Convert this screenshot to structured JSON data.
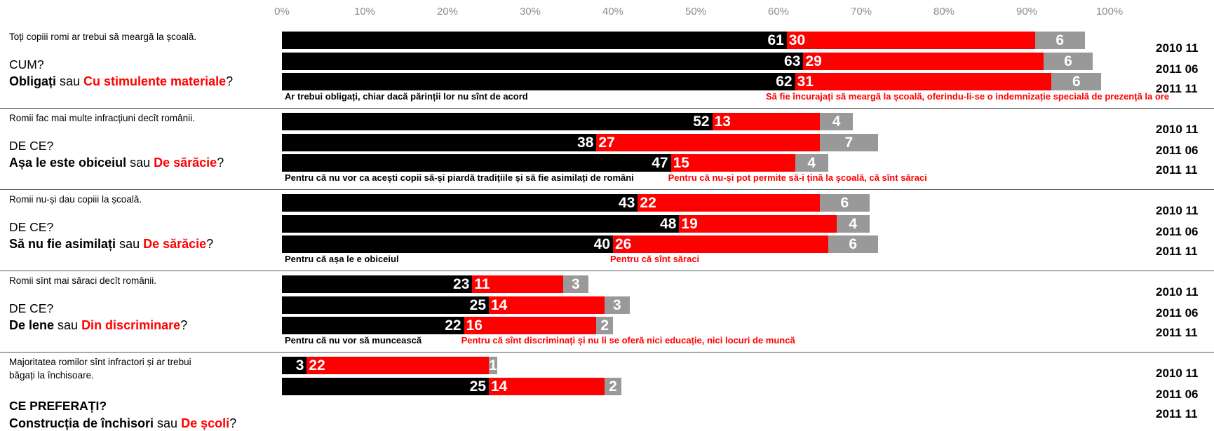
{
  "chart_data": {
    "type": "bar",
    "orientation": "horizontal",
    "stacked": true,
    "xlim": [
      0,
      100
    ],
    "tick_labels": [
      "0%",
      "10%",
      "20%",
      "30%",
      "40%",
      "50%",
      "60%",
      "70%",
      "80%",
      "90%",
      "100%"
    ],
    "series_colors": [
      "#000000",
      "#ff0000",
      "#999999"
    ],
    "panels": [
      {
        "statement": "Toți copiii romi ar trebui să meargă la școală.",
        "question_head": "CUM?",
        "option_a": "Obligați",
        "connector": "sau",
        "option_b": "Cu stimulente materiale",
        "end": "?",
        "note_a": "Ar trebui obligați, chiar dacă părinții lor nu sînt de acord",
        "note_b": "Să fie încurajați să meargă la școală, oferindu-li-se o indemnizație specială de prezență la ore",
        "rows": [
          {
            "year": "2010 11",
            "values": [
              61,
              30,
              6
            ]
          },
          {
            "year": "2011 06",
            "values": [
              63,
              29,
              6
            ]
          },
          {
            "year": "2011 11",
            "values": [
              62,
              31,
              6
            ]
          }
        ]
      },
      {
        "statement": "Romii fac mai multe infracțiuni decît românii.",
        "question_head": "DE CE?",
        "option_a": "Așa le este obiceiul",
        "connector": "sau",
        "option_b": "De sărăcie",
        "end": "?",
        "note_a": "Pentru că nu vor ca acești copii să-și piardă tradițiile și să fie asimilați de români",
        "note_b": "Pentru că nu-și pot permite să-i țină la școală, că sînt săraci",
        "rows": [
          {
            "year": "2010 11",
            "values": [
              52,
              13,
              4
            ]
          },
          {
            "year": "2011 06",
            "values": [
              38,
              27,
              7
            ]
          },
          {
            "year": "2011 11",
            "values": [
              47,
              15,
              4
            ]
          }
        ]
      },
      {
        "statement": "Romii nu-și dau copiii la școală.",
        "question_head": "DE CE?",
        "option_a": "Să nu fie asimilați",
        "connector": "sau",
        "option_b": "De sărăcie",
        "end": "?",
        "note_a": "Pentru că așa le e obiceiul",
        "note_b": "Pentru că sînt săraci",
        "rows": [
          {
            "year": "2010 11",
            "values": [
              43,
              22,
              6
            ]
          },
          {
            "year": "2011 06",
            "values": [
              48,
              19,
              4
            ]
          },
          {
            "year": "2011 11",
            "values": [
              40,
              26,
              6
            ]
          }
        ]
      },
      {
        "statement": "Romii sînt mai săraci decît românii.",
        "question_head": "DE CE?",
        "option_a": "De lene",
        "connector": "sau",
        "option_b": "Din discriminare",
        "end": "?",
        "note_a": "Pentru că nu vor să muncească",
        "note_b": "Pentru că sînt discriminați și nu li se oferă nici educație, nici locuri de muncă",
        "rows": [
          {
            "year": "2010 11",
            "values": [
              23,
              11,
              3
            ]
          },
          {
            "year": "2011 06",
            "values": [
              25,
              14,
              3
            ]
          },
          {
            "year": "2011 11",
            "values": [
              22,
              16,
              2
            ]
          }
        ]
      },
      {
        "statement": "Majoritatea romilor sînt infractori și ar trebui băgați la închisoare.",
        "question_head": "CE PREFERAȚI?",
        "option_a": "Construcția de închisori",
        "connector": "sau",
        "option_b": "De școli",
        "end": "?",
        "note_a": "",
        "note_b": "",
        "rows": [
          {
            "year": "2010 11",
            "values": [
              3,
              22,
              1
            ]
          },
          {
            "year": "2011 06",
            "values": [
              25,
              14,
              2
            ]
          },
          {
            "year": "2011 11",
            "values": []
          }
        ]
      }
    ]
  }
}
